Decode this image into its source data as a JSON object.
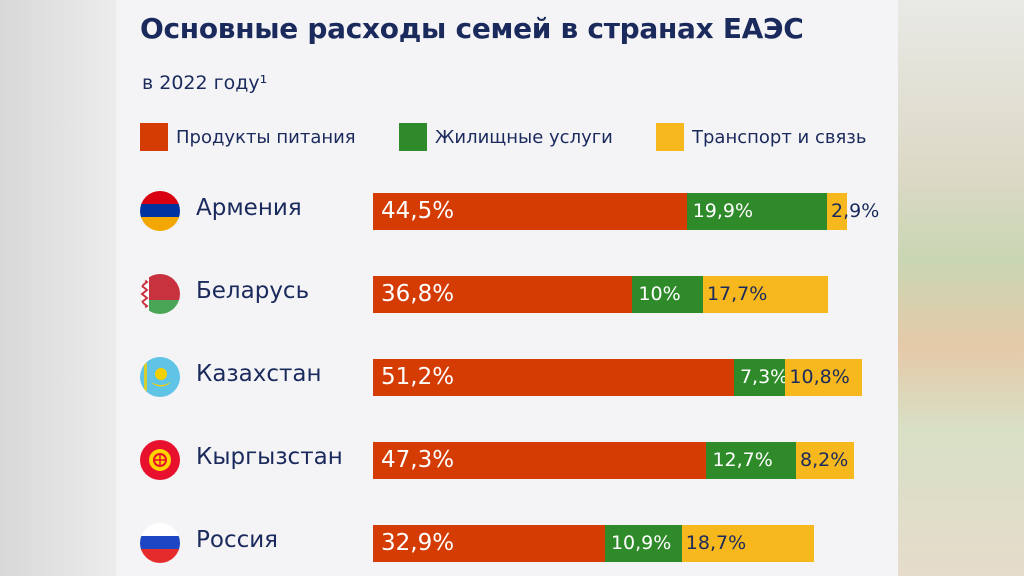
{
  "title": "Основные расходы семей в странах ЕАЭС",
  "subtitle": "в 2022 году¹",
  "colors": {
    "food": "#d43c04",
    "housing": "#2f8a2a",
    "transport": "#f7b81d",
    "text": "#1b2a5c"
  },
  "legend": [
    {
      "label": "Продукты питания",
      "color": "#d43c04"
    },
    {
      "label": "Жилищные услуги",
      "color": "#2f8a2a"
    },
    {
      "label": "Транспорт и связь",
      "color": "#f7b81d"
    }
  ],
  "chart_data": {
    "type": "bar",
    "orientation": "horizontal",
    "stacked": true,
    "categories": [
      "Армения",
      "Беларусь",
      "Казахстан",
      "Кыргызстан",
      "Россия"
    ],
    "series": [
      {
        "name": "Продукты питания",
        "values": [
          44.5,
          36.8,
          51.2,
          47.3,
          32.9
        ],
        "labels": [
          "44,5%",
          "36,8%",
          "51,2%",
          "47,3%",
          "32,9%"
        ]
      },
      {
        "name": "Жилищные услуги",
        "values": [
          19.9,
          10,
          7.3,
          12.7,
          10.9
        ],
        "labels": [
          "19,9%",
          "10%",
          "7,3%",
          "12,7%",
          "10,9%"
        ]
      },
      {
        "name": "Транспорт и связь",
        "values": [
          2.9,
          17.7,
          10.8,
          8.2,
          18.7
        ],
        "labels": [
          "2,9%",
          "17,7%",
          "10,8%",
          "8,2%",
          "18,7%"
        ]
      }
    ],
    "flags": [
      "armenia-flag-icon",
      "belarus-flag-icon",
      "kazakhstan-flag-icon",
      "kyrgyzstan-flag-icon",
      "russia-flag-icon"
    ]
  }
}
